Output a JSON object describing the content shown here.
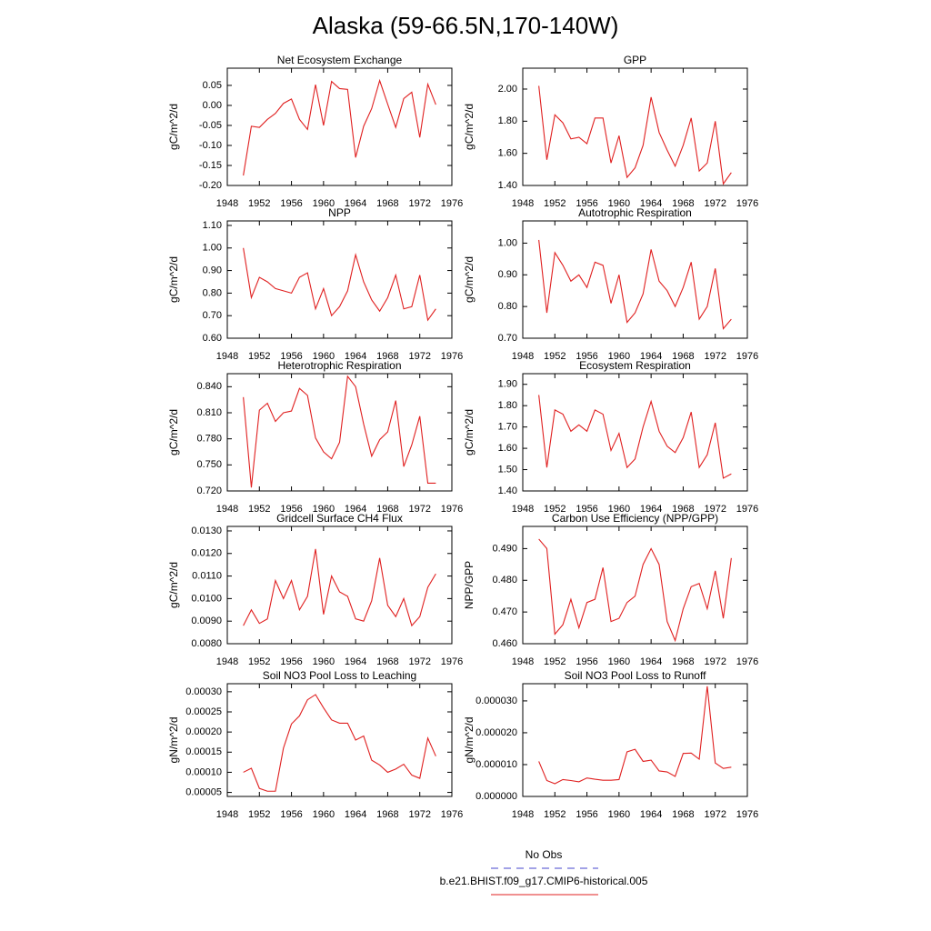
{
  "title": "Alaska (59-66.5N,170-140W)",
  "legend": [
    {
      "name": "No Obs",
      "color": "#4444cc",
      "dashed": true
    },
    {
      "name": "b.e21.BHIST.f09_g17.CMIP6-historical.005",
      "color": "#e02020",
      "dashed": false
    }
  ],
  "chart_data": [
    {
      "type": "line",
      "title": "Net Ecosystem Exchange",
      "y_label": "gC/m^2/d",
      "x": [
        1950,
        1951,
        1952,
        1953,
        1954,
        1955,
        1956,
        1957,
        1958,
        1959,
        1960,
        1961,
        1962,
        1963,
        1964,
        1965,
        1966,
        1967,
        1968,
        1969,
        1970,
        1971,
        1972,
        1973,
        1974
      ],
      "series": [
        {
          "color": "#e02020",
          "values": [
            -0.175,
            -0.052,
            -0.055,
            -0.035,
            -0.02,
            0.005,
            0.016,
            -0.035,
            -0.06,
            0.052,
            -0.05,
            0.06,
            0.042,
            0.04,
            -0.13,
            -0.052,
            -0.008,
            0.062,
            0.003,
            -0.055,
            0.017,
            0.033,
            -0.08,
            0.053,
            0.002
          ]
        }
      ],
      "xlim": [
        1948,
        1976
      ],
      "xticks": [
        1948,
        1952,
        1956,
        1960,
        1964,
        1968,
        1972,
        1976
      ],
      "ylim": [
        -0.2,
        0.093
      ],
      "yticks": [
        {
          "value": -0.2,
          "label": "-0.20"
        },
        {
          "value": -0.15,
          "label": "-0.15"
        },
        {
          "value": -0.1,
          "label": "-0.10"
        },
        {
          "value": -0.05,
          "label": "-0.05"
        },
        {
          "value": 0,
          "label": "0.00"
        },
        {
          "value": 0.05,
          "label": "0.05"
        }
      ]
    },
    {
      "type": "line",
      "title": "GPP",
      "y_label": "gC/m^2/d",
      "x": [
        1950,
        1951,
        1952,
        1953,
        1954,
        1955,
        1956,
        1957,
        1958,
        1959,
        1960,
        1961,
        1962,
        1963,
        1964,
        1965,
        1966,
        1967,
        1968,
        1969,
        1970,
        1971,
        1972,
        1973,
        1974
      ],
      "series": [
        {
          "color": "#e02020",
          "values": [
            2.02,
            1.56,
            1.84,
            1.79,
            1.69,
            1.7,
            1.66,
            1.82,
            1.82,
            1.54,
            1.71,
            1.45,
            1.51,
            1.65,
            1.95,
            1.73,
            1.62,
            1.52,
            1.65,
            1.82,
            1.49,
            1.54,
            1.8,
            1.41,
            1.48
          ]
        }
      ],
      "xlim": [
        1948,
        1976
      ],
      "xticks": [
        1948,
        1952,
        1956,
        1960,
        1964,
        1968,
        1972,
        1976
      ],
      "ylim": [
        1.4,
        2.13
      ],
      "yticks": [
        {
          "value": 1.4,
          "label": "1.40"
        },
        {
          "value": 1.6,
          "label": "1.60"
        },
        {
          "value": 1.8,
          "label": "1.80"
        },
        {
          "value": 2.0,
          "label": "2.00"
        }
      ]
    },
    {
      "type": "line",
      "title": "NPP",
      "y_label": "gC/m^2/d",
      "x": [
        1950,
        1951,
        1952,
        1953,
        1954,
        1955,
        1956,
        1957,
        1958,
        1959,
        1960,
        1961,
        1962,
        1963,
        1964,
        1965,
        1966,
        1967,
        1968,
        1969,
        1970,
        1971,
        1972,
        1973,
        1974
      ],
      "series": [
        {
          "color": "#e02020",
          "values": [
            1.0,
            0.78,
            0.87,
            0.85,
            0.82,
            0.81,
            0.8,
            0.87,
            0.89,
            0.73,
            0.82,
            0.7,
            0.74,
            0.81,
            0.97,
            0.85,
            0.77,
            0.72,
            0.78,
            0.88,
            0.73,
            0.74,
            0.88,
            0.68,
            0.73
          ]
        }
      ],
      "xlim": [
        1948,
        1976
      ],
      "xticks": [
        1948,
        1952,
        1956,
        1960,
        1964,
        1968,
        1972,
        1976
      ],
      "ylim": [
        0.6,
        1.12
      ],
      "yticks": [
        {
          "value": 0.6,
          "label": "0.60"
        },
        {
          "value": 0.7,
          "label": "0.70"
        },
        {
          "value": 0.8,
          "label": "0.80"
        },
        {
          "value": 0.9,
          "label": "0.90"
        },
        {
          "value": 1.0,
          "label": "1.00"
        },
        {
          "value": 1.1,
          "label": "1.10"
        }
      ]
    },
    {
      "type": "line",
      "title": "Autotrophic Respiration",
      "y_label": "gC/m^2/d",
      "x": [
        1950,
        1951,
        1952,
        1953,
        1954,
        1955,
        1956,
        1957,
        1958,
        1959,
        1960,
        1961,
        1962,
        1963,
        1964,
        1965,
        1966,
        1967,
        1968,
        1969,
        1970,
        1971,
        1972,
        1973,
        1974
      ],
      "series": [
        {
          "color": "#e02020",
          "values": [
            1.01,
            0.78,
            0.97,
            0.93,
            0.88,
            0.9,
            0.86,
            0.94,
            0.93,
            0.81,
            0.9,
            0.75,
            0.78,
            0.84,
            0.98,
            0.88,
            0.85,
            0.8,
            0.86,
            0.94,
            0.76,
            0.8,
            0.92,
            0.73,
            0.76
          ]
        }
      ],
      "xlim": [
        1948,
        1976
      ],
      "xticks": [
        1948,
        1952,
        1956,
        1960,
        1964,
        1968,
        1972,
        1976
      ],
      "ylim": [
        0.7,
        1.07
      ],
      "yticks": [
        {
          "value": 0.7,
          "label": "0.70"
        },
        {
          "value": 0.8,
          "label": "0.80"
        },
        {
          "value": 0.9,
          "label": "0.90"
        },
        {
          "value": 1.0,
          "label": "1.00"
        }
      ]
    },
    {
      "type": "line",
      "title": "Heterotrophic Respiration",
      "y_label": "gC/m^2/d",
      "x": [
        1950,
        1951,
        1952,
        1953,
        1954,
        1955,
        1956,
        1957,
        1958,
        1959,
        1960,
        1961,
        1962,
        1963,
        1964,
        1965,
        1966,
        1967,
        1968,
        1969,
        1970,
        1971,
        1972,
        1973,
        1974
      ],
      "series": [
        {
          "color": "#e02020",
          "values": [
            0.828,
            0.724,
            0.813,
            0.821,
            0.8,
            0.81,
            0.812,
            0.838,
            0.83,
            0.781,
            0.765,
            0.757,
            0.776,
            0.852,
            0.84,
            0.797,
            0.76,
            0.779,
            0.788,
            0.824,
            0.748,
            0.773,
            0.806,
            0.729,
            0.729
          ]
        }
      ],
      "xlim": [
        1948,
        1976
      ],
      "xticks": [
        1948,
        1952,
        1956,
        1960,
        1964,
        1968,
        1972,
        1976
      ],
      "ylim": [
        0.72,
        0.855
      ],
      "yticks": [
        {
          "value": 0.72,
          "label": "0.720"
        },
        {
          "value": 0.75,
          "label": "0.750"
        },
        {
          "value": 0.78,
          "label": "0.780"
        },
        {
          "value": 0.81,
          "label": "0.810"
        },
        {
          "value": 0.84,
          "label": "0.840"
        }
      ]
    },
    {
      "type": "line",
      "title": "Ecosystem Respiration",
      "y_label": "gC/m^2/d",
      "x": [
        1950,
        1951,
        1952,
        1953,
        1954,
        1955,
        1956,
        1957,
        1958,
        1959,
        1960,
        1961,
        1962,
        1963,
        1964,
        1965,
        1966,
        1967,
        1968,
        1969,
        1970,
        1971,
        1972,
        1973,
        1974
      ],
      "series": [
        {
          "color": "#e02020",
          "values": [
            1.85,
            1.51,
            1.78,
            1.76,
            1.68,
            1.71,
            1.68,
            1.78,
            1.76,
            1.59,
            1.67,
            1.51,
            1.55,
            1.7,
            1.82,
            1.68,
            1.61,
            1.58,
            1.65,
            1.77,
            1.51,
            1.57,
            1.72,
            1.46,
            1.48
          ]
        }
      ],
      "xlim": [
        1948,
        1976
      ],
      "xticks": [
        1948,
        1952,
        1956,
        1960,
        1964,
        1968,
        1972,
        1976
      ],
      "ylim": [
        1.4,
        1.95
      ],
      "yticks": [
        {
          "value": 1.4,
          "label": "1.40"
        },
        {
          "value": 1.5,
          "label": "1.50"
        },
        {
          "value": 1.6,
          "label": "1.60"
        },
        {
          "value": 1.7,
          "label": "1.70"
        },
        {
          "value": 1.8,
          "label": "1.80"
        },
        {
          "value": 1.9,
          "label": "1.90"
        }
      ]
    },
    {
      "type": "line",
      "title": "Gridcell Surface CH4 Flux",
      "y_label": "gC/m^2/d",
      "x": [
        1950,
        1951,
        1952,
        1953,
        1954,
        1955,
        1956,
        1957,
        1958,
        1959,
        1960,
        1961,
        1962,
        1963,
        1964,
        1965,
        1966,
        1967,
        1968,
        1969,
        1970,
        1971,
        1972,
        1973,
        1974
      ],
      "series": [
        {
          "color": "#e02020",
          "values": [
            0.0088,
            0.0095,
            0.0089,
            0.0091,
            0.0108,
            0.01,
            0.0108,
            0.0095,
            0.0101,
            0.0122,
            0.0093,
            0.011,
            0.0103,
            0.0101,
            0.0091,
            0.009,
            0.0099,
            0.0118,
            0.0097,
            0.0092,
            0.01,
            0.0088,
            0.0092,
            0.0105,
            0.0111
          ]
        }
      ],
      "xlim": [
        1948,
        1976
      ],
      "xticks": [
        1948,
        1952,
        1956,
        1960,
        1964,
        1968,
        1972,
        1976
      ],
      "ylim": [
        0.008,
        0.0132
      ],
      "yticks": [
        {
          "value": 0.008,
          "label": "0.0080"
        },
        {
          "value": 0.009,
          "label": "0.0090"
        },
        {
          "value": 0.01,
          "label": "0.0100"
        },
        {
          "value": 0.011,
          "label": "0.0110"
        },
        {
          "value": 0.012,
          "label": "0.0120"
        },
        {
          "value": 0.013,
          "label": "0.0130"
        }
      ]
    },
    {
      "type": "line",
      "title": "Carbon Use Efficiency (NPP/GPP)",
      "y_label": "NPP/GPP",
      "x": [
        1950,
        1951,
        1952,
        1953,
        1954,
        1955,
        1956,
        1957,
        1958,
        1959,
        1960,
        1961,
        1962,
        1963,
        1964,
        1965,
        1966,
        1967,
        1968,
        1969,
        1970,
        1971,
        1972,
        1973,
        1974
      ],
      "series": [
        {
          "color": "#e02020",
          "values": [
            0.493,
            0.49,
            0.463,
            0.466,
            0.474,
            0.465,
            0.473,
            0.474,
            0.484,
            0.467,
            0.468,
            0.473,
            0.475,
            0.485,
            0.49,
            0.485,
            0.467,
            0.461,
            0.471,
            0.478,
            0.479,
            0.471,
            0.483,
            0.468,
            0.487
          ]
        }
      ],
      "xlim": [
        1948,
        1976
      ],
      "xticks": [
        1948,
        1952,
        1956,
        1960,
        1964,
        1968,
        1972,
        1976
      ],
      "ylim": [
        0.46,
        0.497
      ],
      "yticks": [
        {
          "value": 0.46,
          "label": "0.460"
        },
        {
          "value": 0.47,
          "label": "0.470"
        },
        {
          "value": 0.48,
          "label": "0.480"
        },
        {
          "value": 0.49,
          "label": "0.490"
        }
      ]
    },
    {
      "type": "line",
      "title": "Soil NO3 Pool Loss to Leaching",
      "y_label": "gN/m^2/d",
      "x": [
        1950,
        1951,
        1952,
        1953,
        1954,
        1955,
        1956,
        1957,
        1958,
        1959,
        1960,
        1961,
        1962,
        1963,
        1964,
        1965,
        1966,
        1967,
        1968,
        1969,
        1970,
        1971,
        1972,
        1973,
        1974
      ],
      "series": [
        {
          "color": "#e02020",
          "values": [
            0.0001,
            0.00011,
            6e-05,
            5.3e-05,
            5.3e-05,
            0.00016,
            0.00022,
            0.00024,
            0.00028,
            0.000293,
            0.00026,
            0.00023,
            0.000222,
            0.000222,
            0.00018,
            0.00019,
            0.00013,
            0.000118,
            0.0001,
            0.000108,
            0.00012,
            9.3e-05,
            8.5e-05,
            0.000185,
            0.00014
          ]
        }
      ],
      "xlim": [
        1948,
        1976
      ],
      "xticks": [
        1948,
        1952,
        1956,
        1960,
        1964,
        1968,
        1972,
        1976
      ],
      "ylim": [
        4e-05,
        0.00032
      ],
      "yticks": [
        {
          "value": 5e-05,
          "label": "0.00005"
        },
        {
          "value": 0.0001,
          "label": "0.00010"
        },
        {
          "value": 0.00015,
          "label": "0.00015"
        },
        {
          "value": 0.0002,
          "label": "0.00020"
        },
        {
          "value": 0.00025,
          "label": "0.00025"
        },
        {
          "value": 0.0003,
          "label": "0.00030"
        }
      ]
    },
    {
      "type": "line",
      "title": "Soil NO3 Pool Loss to Runoff",
      "y_label": "gN/m^2/d",
      "x": [
        1950,
        1951,
        1952,
        1953,
        1954,
        1955,
        1956,
        1957,
        1958,
        1959,
        1960,
        1961,
        1962,
        1963,
        1964,
        1965,
        1966,
        1967,
        1968,
        1969,
        1970,
        1971,
        1972,
        1973,
        1974
      ],
      "series": [
        {
          "color": "#e02020",
          "values": [
            1.1e-05,
            5e-06,
            4e-06,
            5.3e-06,
            5e-06,
            4.6e-06,
            5.8e-06,
            5.4e-06,
            5.1e-06,
            5.1e-06,
            5.3e-06,
            1.4e-05,
            1.48e-05,
            1.1e-05,
            1.14e-05,
            8e-06,
            7.7e-06,
            6.3e-06,
            1.35e-05,
            1.36e-05,
            1.17e-05,
            3.46e-05,
            1.05e-05,
            8.8e-06,
            9.2e-06
          ]
        }
      ],
      "xlim": [
        1948,
        1976
      ],
      "xticks": [
        1948,
        1952,
        1956,
        1960,
        1964,
        1968,
        1972,
        1976
      ],
      "ylim": [
        0,
        3.54e-05
      ],
      "yticks": [
        {
          "value": 0,
          "label": "0.000000"
        },
        {
          "value": 1e-05,
          "label": "0.000010"
        },
        {
          "value": 2e-05,
          "label": "0.000020"
        },
        {
          "value": 3e-05,
          "label": "0.000030"
        }
      ]
    }
  ]
}
